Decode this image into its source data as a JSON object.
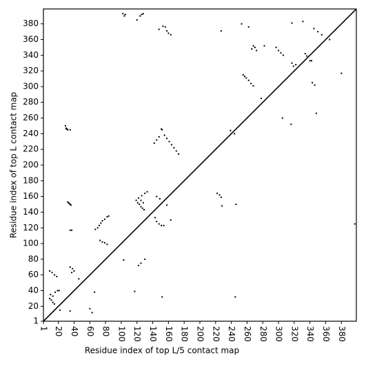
{
  "chart_data": {
    "type": "scatter",
    "xlabel": "Residue index of top L/5 contact map",
    "ylabel": "Residue index of top L contact map",
    "color": "#000000",
    "diagonal": true,
    "xlim": [
      1,
      399
    ],
    "ylim": [
      1,
      399
    ],
    "xticks": [
      1,
      20,
      40,
      60,
      80,
      100,
      120,
      140,
      160,
      180,
      200,
      220,
      240,
      260,
      280,
      300,
      320,
      340,
      360,
      380
    ],
    "yticks": [
      1,
      20,
      40,
      60,
      80,
      100,
      120,
      140,
      160,
      180,
      200,
      220,
      240,
      260,
      280,
      300,
      320,
      340,
      360,
      380
    ],
    "x": [
      30,
      31,
      32,
      30,
      29,
      35,
      32,
      33,
      35,
      34,
      36,
      35,
      37,
      67,
      70,
      72,
      74,
      76,
      79,
      82,
      84,
      73,
      76,
      79,
      82,
      102,
      105,
      104,
      120,
      124,
      126,
      128,
      119,
      121,
      123,
      125,
      127,
      129,
      122,
      126,
      130,
      133,
      125,
      128,
      142,
      145,
      148,
      151,
      152,
      155,
      158,
      161,
      164,
      167,
      170,
      173,
      148,
      153,
      156,
      158,
      160,
      163,
      143,
      145,
      148,
      151,
      154,
      145,
      149,
      158,
      163,
      222,
      225,
      227,
      228,
      227,
      239,
      244,
      246,
      9,
      12,
      15,
      18,
      10,
      13,
      16,
      19,
      21,
      9,
      11,
      13,
      15,
      22,
      35,
      35,
      38,
      40,
      46,
      37,
      117,
      122,
      125,
      130,
      103,
      152,
      245,
      253,
      255,
      257,
      259,
      262,
      265,
      268,
      262,
      266,
      270,
      268,
      272,
      282,
      278,
      297,
      300,
      303,
      306,
      305,
      316,
      317,
      319,
      322,
      317,
      331,
      334,
      336,
      340,
      342,
      343,
      346,
      348,
      345,
      350,
      355,
      365,
      380,
      397,
      66,
      60,
      63
    ],
    "values": [
      246,
      246,
      245,
      247,
      250,
      245,
      153,
      152,
      150,
      151,
      149,
      117,
      117,
      118,
      120,
      123,
      126,
      129,
      131,
      134,
      135,
      104,
      102,
      101,
      99,
      393,
      392,
      390,
      385,
      390,
      392,
      393,
      155,
      152,
      150,
      147,
      145,
      143,
      158,
      161,
      164,
      166,
      155,
      152,
      228,
      232,
      236,
      246,
      245,
      238,
      234,
      230,
      226,
      222,
      218,
      214,
      373,
      377,
      376,
      371,
      368,
      366,
      133,
      128,
      125,
      123,
      123,
      160,
      157,
      149,
      130,
      164,
      162,
      159,
      148,
      371,
      244,
      240,
      150,
      65,
      63,
      60,
      58,
      35,
      33,
      38,
      40,
      40,
      30,
      28,
      25,
      23,
      15,
      14,
      70,
      68,
      65,
      55,
      63,
      39,
      72,
      75,
      80,
      79,
      32,
      32,
      380,
      315,
      313,
      311,
      308,
      304,
      301,
      376,
      348,
      350,
      352,
      346,
      352,
      285,
      350,
      346,
      343,
      340,
      260,
      252,
      330,
      326,
      328,
      381,
      383,
      342,
      339,
      333,
      333,
      305,
      302,
      266,
      374,
      370,
      366,
      360,
      317,
      125,
      38,
      17,
      12
    ]
  }
}
